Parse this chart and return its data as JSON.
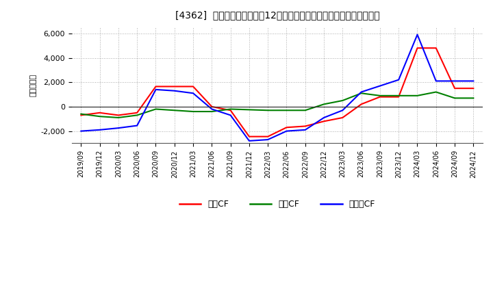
{
  "title": "[4362]  キャッシュフローの12か月移動合計の対前年同期増減額の推移",
  "ylabel": "（百万円）",
  "background_color": "#ffffff",
  "plot_bg_color": "#ffffff",
  "grid_color": "#aaaaaa",
  "ylim": [
    -3000,
    6500
  ],
  "yticks": [
    -2000,
    0,
    2000,
    4000,
    6000
  ],
  "x_labels": [
    "2019/09",
    "2019/12",
    "2020/03",
    "2020/06",
    "2020/09",
    "2020/12",
    "2021/03",
    "2021/06",
    "2021/09",
    "2021/12",
    "2022/03",
    "2022/06",
    "2022/09",
    "2022/12",
    "2023/03",
    "2023/06",
    "2023/09",
    "2023/12",
    "2024/03",
    "2024/06",
    "2024/09",
    "2024/12"
  ],
  "series": {
    "営業CF": {
      "color": "#ff0000",
      "values": [
        -700,
        -500,
        -700,
        -500,
        1650,
        1650,
        1650,
        0,
        -300,
        -2450,
        -2450,
        -1700,
        -1600,
        -1200,
        -900,
        200,
        800,
        800,
        4800,
        4800,
        1500,
        1500
      ]
    },
    "投資CF": {
      "color": "#008000",
      "values": [
        -600,
        -800,
        -900,
        -700,
        -200,
        -300,
        -400,
        -400,
        -200,
        -250,
        -300,
        -300,
        -300,
        200,
        500,
        1100,
        900,
        900,
        900,
        1200,
        700,
        700
      ]
    },
    "フリーCF": {
      "color": "#0000ff",
      "values": [
        -2000,
        -1900,
        -1750,
        -1550,
        1400,
        1300,
        1100,
        -200,
        -700,
        -2800,
        -2700,
        -2000,
        -1900,
        -900,
        -300,
        1200,
        1700,
        2200,
        5900,
        2100,
        2100,
        2100
      ]
    }
  },
  "legend": {
    "entries": [
      "営業CF",
      "投資CF",
      "フリーCF"
    ],
    "colors": [
      "#ff0000",
      "#008000",
      "#0000ff"
    ]
  }
}
